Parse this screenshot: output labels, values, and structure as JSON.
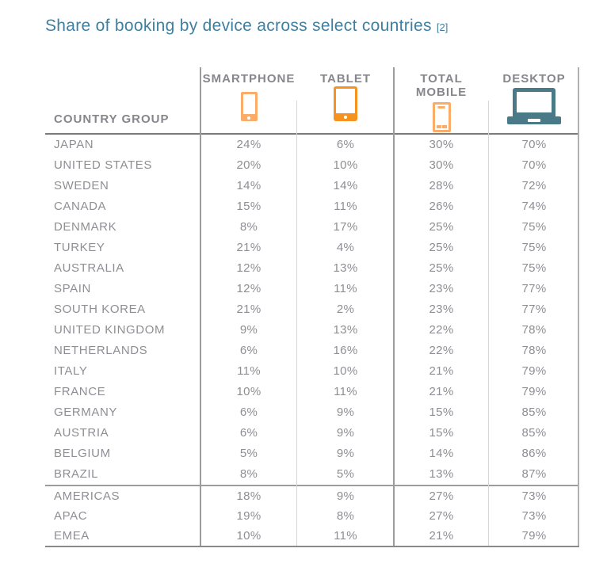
{
  "title": {
    "text": "Share of booking by device across select countries",
    "reference": "[2]"
  },
  "colors": {
    "title_teal": "#3f80a1",
    "text_gray": "#8e8e94",
    "header_gray": "#86868d",
    "smartphone_orange": "#faac6a",
    "tablet_orange": "#f6921e",
    "desktop_teal": "#4a7a87"
  },
  "chart_data": {
    "type": "table",
    "title": "Share of booking by device across select countries [2]",
    "columns": [
      "COUNTRY GROUP",
      "SMARTPHONE",
      "TABLET",
      "TOTAL MOBILE",
      "DESKTOP"
    ],
    "header_icons": [
      "smartphone-icon",
      "tablet-icon",
      "mobile-outline-icon",
      "laptop-icon"
    ],
    "rows": [
      {
        "country": "JAPAN",
        "smartphone": "24%",
        "tablet": "6%",
        "total_mobile": "30%",
        "desktop": "70%"
      },
      {
        "country": "UNITED STATES",
        "smartphone": "20%",
        "tablet": "10%",
        "total_mobile": "30%",
        "desktop": "70%"
      },
      {
        "country": "SWEDEN",
        "smartphone": "14%",
        "tablet": "14%",
        "total_mobile": "28%",
        "desktop": "72%"
      },
      {
        "country": "CANADA",
        "smartphone": "15%",
        "tablet": "11%",
        "total_mobile": "26%",
        "desktop": "74%"
      },
      {
        "country": "DENMARK",
        "smartphone": "8%",
        "tablet": "17%",
        "total_mobile": "25%",
        "desktop": "75%"
      },
      {
        "country": "TURKEY",
        "smartphone": "21%",
        "tablet": "4%",
        "total_mobile": "25%",
        "desktop": "75%"
      },
      {
        "country": "AUSTRALIA",
        "smartphone": "12%",
        "tablet": "13%",
        "total_mobile": "25%",
        "desktop": "75%"
      },
      {
        "country": "SPAIN",
        "smartphone": "12%",
        "tablet": "11%",
        "total_mobile": "23%",
        "desktop": "77%"
      },
      {
        "country": "SOUTH KOREA",
        "smartphone": "21%",
        "tablet": "2%",
        "total_mobile": "23%",
        "desktop": "77%"
      },
      {
        "country": "UNITED KINGDOM",
        "smartphone": "9%",
        "tablet": "13%",
        "total_mobile": "22%",
        "desktop": "78%"
      },
      {
        "country": "NETHERLANDS",
        "smartphone": "6%",
        "tablet": "16%",
        "total_mobile": "22%",
        "desktop": "78%"
      },
      {
        "country": "ITALY",
        "smartphone": "11%",
        "tablet": "10%",
        "total_mobile": "21%",
        "desktop": "79%"
      },
      {
        "country": "FRANCE",
        "smartphone": "10%",
        "tablet": "11%",
        "total_mobile": "21%",
        "desktop": "79%"
      },
      {
        "country": "GERMANY",
        "smartphone": "6%",
        "tablet": "9%",
        "total_mobile": "15%",
        "desktop": "85%"
      },
      {
        "country": "AUSTRIA",
        "smartphone": "6%",
        "tablet": "9%",
        "total_mobile": "15%",
        "desktop": "85%"
      },
      {
        "country": "BELGIUM",
        "smartphone": "5%",
        "tablet": "9%",
        "total_mobile": "14%",
        "desktop": "86%"
      },
      {
        "country": "BRAZIL",
        "smartphone": "8%",
        "tablet": "5%",
        "total_mobile": "13%",
        "desktop": "87%"
      }
    ],
    "region_rows": [
      {
        "country": "AMERICAS",
        "smartphone": "18%",
        "tablet": "9%",
        "total_mobile": "27%",
        "desktop": "73%"
      },
      {
        "country": "APAC",
        "smartphone": "19%",
        "tablet": "8%",
        "total_mobile": "27%",
        "desktop": "73%"
      },
      {
        "country": "EMEA",
        "smartphone": "10%",
        "tablet": "11%",
        "total_mobile": "21%",
        "desktop": "79%"
      }
    ]
  }
}
